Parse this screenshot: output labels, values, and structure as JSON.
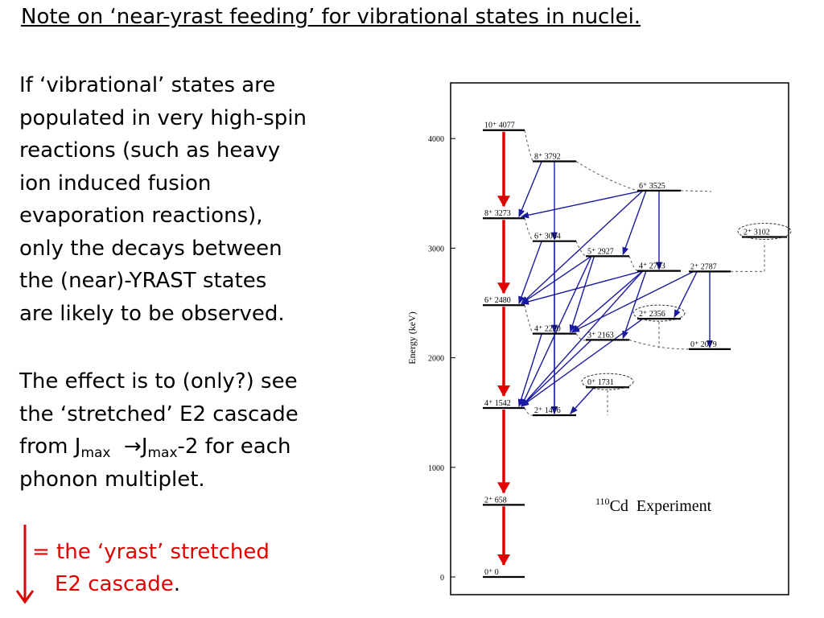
{
  "title": "Note on ‘near-yrast feeding’ for vibrational states in nuclei.",
  "paragraph1": [
    "If ‘vibrational’ states are",
    "populated in very high-spin",
    "reactions (such as heavy",
    "ion induced fusion",
    "evaporation reactions),",
    "only the decays between",
    "the (near)-YRAST states",
    "are likely to be observed."
  ],
  "paragraph2": {
    "line1": "The effect is to (only?) see",
    "line2": "the ‘stretched’ E2 cascade",
    "line3_a": "from J",
    "line3_sub1": "max",
    "line3_arrow": "→J",
    "line3_sub2": "max",
    "line3_b": "-2 for each",
    "line4": "phonon multiplet."
  },
  "legend": {
    "line1": "= the ‘yrast’ stretched",
    "line2": "E2 cascade",
    "period": ".",
    "arrow_color": "#e00000"
  },
  "diagram": {
    "ylabel": "Energy (keV)",
    "yticks": [
      0,
      1000,
      2000,
      3000,
      4000
    ],
    "annotation_nucleus": "110",
    "annotation_element": "Cd",
    "annotation_text": "Experiment",
    "yrast_color": "#e00000",
    "feeding_color": "#1a1aa0",
    "levels": [
      {
        "id": "L0",
        "label": "0⁺ 0",
        "energy": 0,
        "col": "yrast"
      },
      {
        "id": "L658",
        "label": "2⁺ 658",
        "energy": 658,
        "col": "yrast"
      },
      {
        "id": "L1542",
        "label": "4⁺ 1542",
        "energy": 1542,
        "col": "yrast"
      },
      {
        "id": "L2480",
        "label": "6⁺ 2480",
        "energy": 2480,
        "col": "yrast"
      },
      {
        "id": "L3273",
        "label": "8⁺ 3273",
        "energy": 3273,
        "col": "yrast"
      },
      {
        "id": "L4077",
        "label": "10⁺ 4077",
        "energy": 4077,
        "col": "yrast"
      },
      {
        "id": "L1476",
        "label": "2⁺ 1476",
        "energy": 1476,
        "col": "b"
      },
      {
        "id": "L2220",
        "label": "4⁺ 2220",
        "energy": 2220,
        "col": "b"
      },
      {
        "id": "L3064",
        "label": "6⁺ 3064",
        "energy": 3064,
        "col": "b"
      },
      {
        "id": "L3792",
        "label": "8⁺ 3792",
        "energy": 3792,
        "col": "b"
      },
      {
        "id": "L1731",
        "label": "0⁺ 1731",
        "energy": 1731,
        "col": "c",
        "circled": true
      },
      {
        "id": "L2163",
        "label": "3⁺ 2163",
        "energy": 2163,
        "col": "c"
      },
      {
        "id": "L2927",
        "label": "5⁺ 2927",
        "energy": 2927,
        "col": "c"
      },
      {
        "id": "L2793",
        "label": "4⁺ 2793",
        "energy": 2793,
        "col": "d"
      },
      {
        "id": "L3525",
        "label": "6⁺ 3525",
        "energy": 3525,
        "col": "d"
      },
      {
        "id": "L2356",
        "label": "2⁺ 2356",
        "energy": 2356,
        "col": "d",
        "circled": true
      },
      {
        "id": "L2787",
        "label": "2⁺ 2787",
        "energy": 2787,
        "col": "e"
      },
      {
        "id": "L2079",
        "label": "0⁺ 2079",
        "energy": 2079,
        "col": "e"
      },
      {
        "id": "L3102",
        "label": "2⁺ 3102",
        "energy": 3102,
        "col": "f",
        "circled": true
      }
    ],
    "yrast_transitions": [
      [
        "L4077",
        "L3273"
      ],
      [
        "L3273",
        "L2480"
      ],
      [
        "L2480",
        "L1542"
      ],
      [
        "L1542",
        "L658"
      ],
      [
        "L658",
        "L0"
      ]
    ],
    "feeding_transitions": [
      [
        "L3792",
        "L3273"
      ],
      [
        "L3792",
        "L3064"
      ],
      [
        "L3525",
        "L3273"
      ],
      [
        "L3525",
        "L2480"
      ],
      [
        "L3525",
        "L2927"
      ],
      [
        "L3525",
        "L2793"
      ],
      [
        "L3064",
        "L2480"
      ],
      [
        "L3064",
        "L2220"
      ],
      [
        "L3064",
        "L1476"
      ],
      [
        "L2927",
        "L2480"
      ],
      [
        "L2927",
        "L2220"
      ],
      [
        "L2927",
        "L1542"
      ],
      [
        "L2793",
        "L2480"
      ],
      [
        "L2793",
        "L2163"
      ],
      [
        "L2793",
        "L2220"
      ],
      [
        "L2793",
        "L1542"
      ],
      [
        "L2787",
        "L2356"
      ],
      [
        "L2787",
        "L2220"
      ],
      [
        "L2787",
        "L2079"
      ],
      [
        "L2356",
        "L1542"
      ],
      [
        "L2220",
        "L1542"
      ],
      [
        "L2220",
        "L1476"
      ],
      [
        "L2163",
        "L1542"
      ],
      [
        "L1731",
        "L1476"
      ]
    ]
  }
}
